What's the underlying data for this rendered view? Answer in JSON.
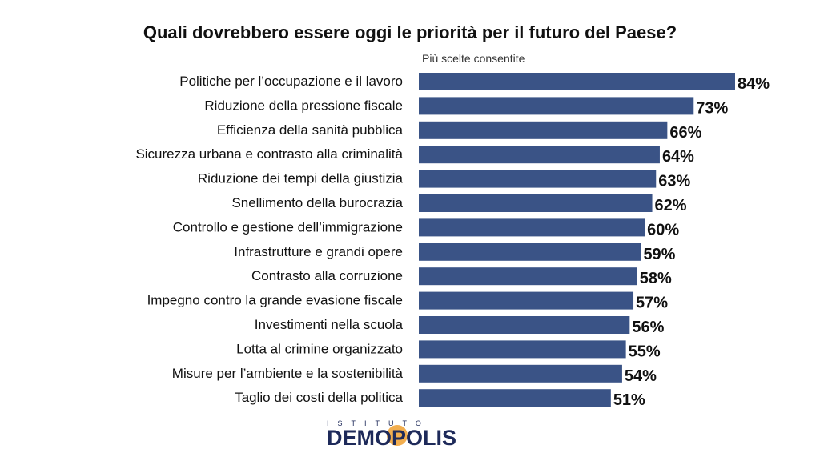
{
  "chart_data": {
    "type": "bar",
    "orientation": "horizontal",
    "title": "Quali dovrebbero essere oggi le priorità per il futuro del Paese?",
    "subtitle": "Più scelte consentite",
    "categories": [
      "Politiche per l’occupazione e il lavoro",
      "Riduzione della pressione fiscale",
      "Efficienza della sanità pubblica",
      "Sicurezza urbana e contrasto alla criminalità",
      "Riduzione dei tempi della giustizia",
      "Snellimento della burocrazia",
      "Controllo e gestione dell’immigrazione",
      "Infrastrutture e grandi opere",
      "Contrasto alla corruzione",
      "Impegno contro la grande evasione fiscale",
      "Investimenti nella scuola",
      "Lotta al crimine organizzato",
      "Misure per l’ambiente e la sostenibilità",
      "Taglio dei costi della politica"
    ],
    "values": [
      84,
      73,
      66,
      64,
      63,
      62,
      60,
      59,
      58,
      57,
      56,
      55,
      54,
      51
    ],
    "value_suffix": "%",
    "xlim": [
      0,
      84
    ],
    "grid": false,
    "bar_color": "#3a5386"
  },
  "logo": {
    "top_text": "ISTITUTO",
    "main_text_left": "DEM",
    "main_text_mid": "O",
    "main_text_right": "POLIS",
    "color": "#1e2a5a",
    "accent": "#f0a030"
  }
}
